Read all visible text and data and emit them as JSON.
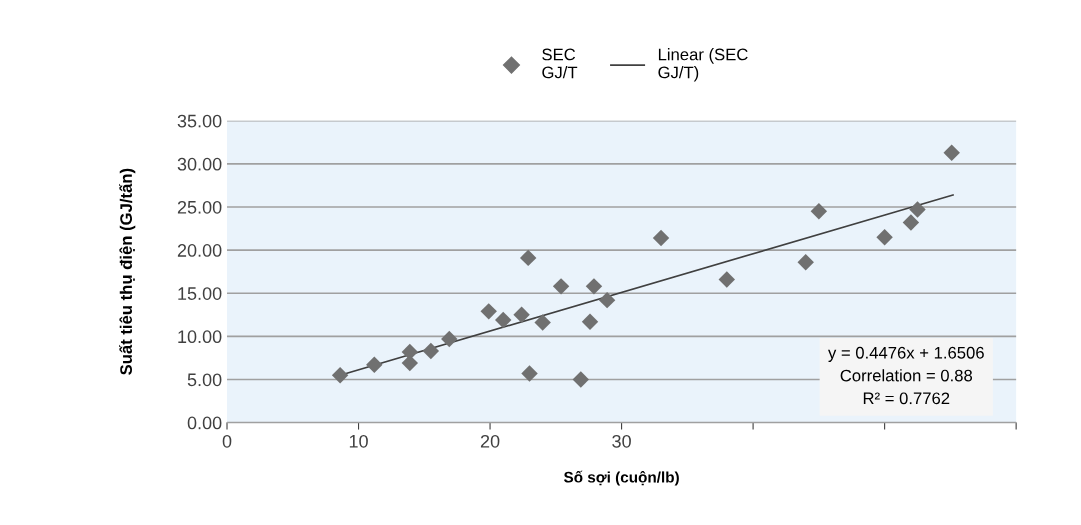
{
  "chart_data": {
    "type": "scatter",
    "xlabel": "Số sợi (cuộn/lb)",
    "ylabel": "Suất tiêu thụ điện (GJ/tấn)",
    "xlim": [
      0,
      60
    ],
    "xticks": [
      0,
      10,
      20,
      30,
      {
        "value": 40,
        "label": null
      },
      {
        "value": 50,
        "label": null
      },
      {
        "value": 60,
        "label": null
      }
    ],
    "ylim": [
      0,
      35
    ],
    "yticks": [
      {
        "value": 0,
        "label": "0.00"
      },
      {
        "value": 5,
        "label": "5.00"
      },
      {
        "value": 10,
        "label": "10.00"
      },
      {
        "value": 15,
        "label": "15.00"
      },
      {
        "value": 20,
        "label": "20.00"
      },
      {
        "value": 25,
        "label": "25.00"
      },
      {
        "value": 30,
        "label": "30.00"
      },
      {
        "value": 35,
        "label": "35.00"
      }
    ],
    "grid": "y",
    "legend": "top",
    "series": [
      {
        "name": "SEC\nGJ/T",
        "marker": "diamond",
        "color": "#707070",
        "x": [
          8.6,
          11.2,
          13.9,
          13.9,
          15.5,
          16.9,
          19.9,
          21.0,
          22.4,
          22.9,
          23.0,
          24.0,
          25.4,
          26.9,
          27.6,
          27.9,
          28.9,
          33.0,
          38.0,
          44.0,
          45.0,
          50.0,
          52.0,
          52.5,
          55.1
        ],
        "values": [
          5.5,
          6.7,
          8.2,
          6.9,
          8.3,
          9.7,
          12.9,
          11.9,
          12.5,
          19.1,
          5.7,
          11.6,
          15.8,
          5.0,
          11.7,
          15.8,
          14.2,
          21.4,
          16.6,
          18.6,
          24.5,
          21.5,
          23.2,
          24.7,
          31.3
        ]
      },
      {
        "name": "Linear (SEC\nGJ/T)",
        "type": "line",
        "marker": "none",
        "color": "#404040",
        "x": [
          8.6,
          55.2
        ],
        "values": [
          5.5,
          26.4
        ]
      }
    ],
    "annotations": [
      "y = 0.4476x + 1.6506",
      "Correlation = 0.88",
      "R² = 0.7762"
    ]
  }
}
